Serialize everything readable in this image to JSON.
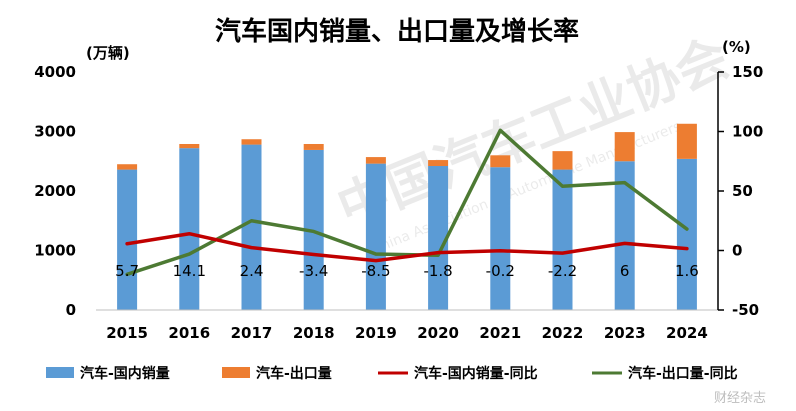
{
  "chart_data": {
    "type": "bar",
    "title": "汽车国内销量、出口量及增长率",
    "left_unit": "(万辆)",
    "right_unit": "(%)",
    "categories": [
      "2015",
      "2016",
      "2017",
      "2018",
      "2019",
      "2020",
      "2021",
      "2022",
      "2023",
      "2024"
    ],
    "left_ticks": [
      "0",
      "1000",
      "2000",
      "3000",
      "4000"
    ],
    "right_ticks": [
      "-50",
      "0",
      "50",
      "100",
      "150"
    ],
    "ylim_left": [
      0,
      4000
    ],
    "ylim_right": [
      -50,
      150
    ],
    "series": [
      {
        "name": "汽车-国内销量",
        "kind": "bar",
        "axis": "left",
        "color": "#5B9BD5",
        "values": [
          2360,
          2720,
          2780,
          2690,
          2460,
          2420,
          2400,
          2360,
          2500,
          2540
        ]
      },
      {
        "name": "汽车-出口量",
        "kind": "bar",
        "axis": "left",
        "color": "#ED7D31",
        "values": [
          90,
          70,
          90,
          100,
          110,
          100,
          200,
          310,
          490,
          590
        ]
      },
      {
        "name": "汽车-国内销量-同比",
        "kind": "line",
        "axis": "right",
        "color": "#C00000",
        "values": [
          5.7,
          14.1,
          2.4,
          -3.4,
          -8.5,
          -1.8,
          -0.2,
          -2.2,
          6,
          1.6
        ],
        "data_labels": [
          "5.7",
          "14.1",
          "2.4",
          "-3.4",
          "-8.5",
          "-1.8",
          "-0.2",
          "-2.2",
          "6",
          "1.6"
        ]
      },
      {
        "name": "汽车-出口量-同比",
        "kind": "line",
        "axis": "right",
        "color": "#4D7A33",
        "values": [
          -20,
          -3,
          25,
          16,
          -3,
          -4,
          101,
          54,
          57,
          18
        ]
      }
    ],
    "grid": false,
    "legend_position": "bottom"
  },
  "watermark": {
    "text1": "中国汽车工业协会",
    "text2": "China Association of Automobile Manufacturers",
    "credit": "财经杂志"
  }
}
